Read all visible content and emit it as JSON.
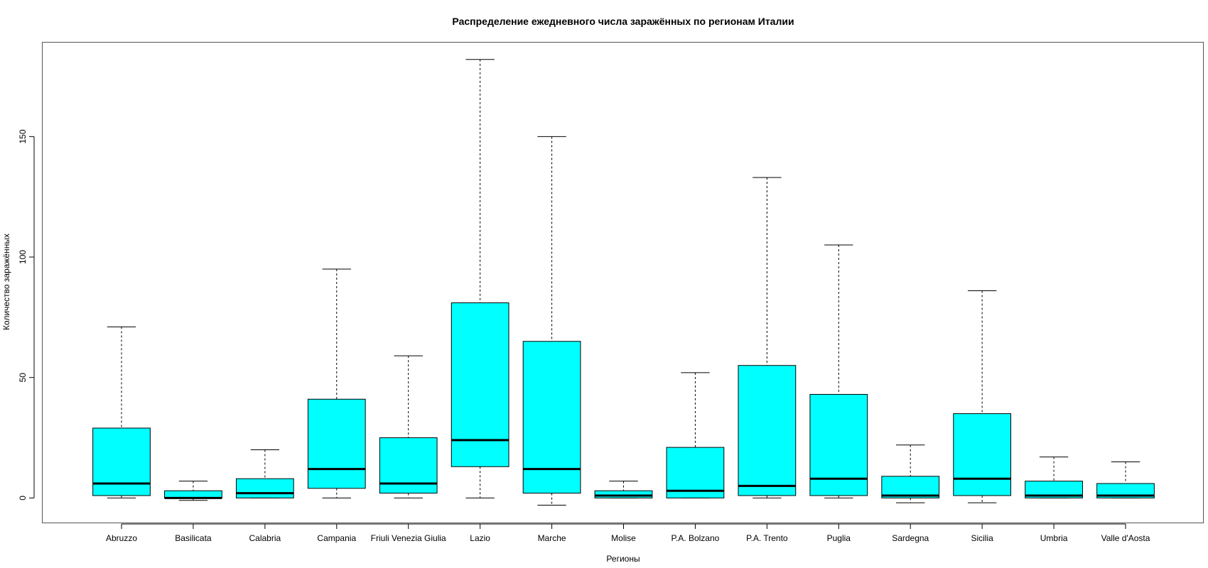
{
  "chart_data": {
    "type": "boxplot",
    "title": "Распределение ежедневного числа заражённых по регионам Италии",
    "xlabel": "Регионы",
    "ylabel": "Количество заражённых",
    "ylim": [
      -10.5,
      189
    ],
    "yticks": [
      0,
      50,
      100,
      150
    ],
    "box_color": "#00FFFF",
    "categories": [
      "Abruzzo",
      "Basilicata",
      "Calabria",
      "Campania",
      "Friuli Venezia Giulia",
      "Lazio",
      "Marche",
      "Molise",
      "P.A. Bolzano",
      "P.A. Trento",
      "Puglia",
      "Sardegna",
      "Sicilia",
      "Umbria",
      "Valle d'Aosta"
    ],
    "boxes": [
      {
        "min": 0,
        "q1": 1,
        "median": 6,
        "q3": 29,
        "max": 71
      },
      {
        "min": -1,
        "q1": 0,
        "median": 0,
        "q3": 3,
        "max": 7
      },
      {
        "min": 0,
        "q1": 0,
        "median": 2,
        "q3": 8,
        "max": 20
      },
      {
        "min": 0,
        "q1": 4,
        "median": 12,
        "q3": 41,
        "max": 95
      },
      {
        "min": 0,
        "q1": 2,
        "median": 6,
        "q3": 25,
        "max": 59
      },
      {
        "min": 0,
        "q1": 13,
        "median": 24,
        "q3": 81,
        "max": 182
      },
      {
        "min": -3,
        "q1": 2,
        "median": 12,
        "q3": 65,
        "max": 150
      },
      {
        "min": 0,
        "q1": 0,
        "median": 1,
        "q3": 3,
        "max": 7
      },
      {
        "min": 0,
        "q1": 0,
        "median": 3,
        "q3": 21,
        "max": 52
      },
      {
        "min": 0,
        "q1": 1,
        "median": 5,
        "q3": 55,
        "max": 133
      },
      {
        "min": 0,
        "q1": 1,
        "median": 8,
        "q3": 43,
        "max": 105
      },
      {
        "min": -2,
        "q1": 0,
        "median": 1,
        "q3": 9,
        "max": 22
      },
      {
        "min": -2,
        "q1": 1,
        "median": 8,
        "q3": 35,
        "max": 86
      },
      {
        "min": 0,
        "q1": 0,
        "median": 1,
        "q3": 7,
        "max": 17
      },
      {
        "min": 0,
        "q1": 0,
        "median": 1,
        "q3": 6,
        "max": 15
      }
    ]
  }
}
